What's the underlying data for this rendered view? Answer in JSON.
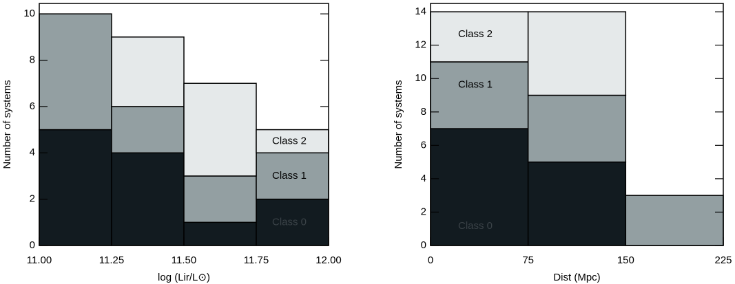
{
  "chart_data": [
    {
      "type": "histogram",
      "xlabel": "log (Lir/L⊙)",
      "ylabel": "Number of systems",
      "bins": [
        11.0,
        11.25,
        11.5,
        11.75,
        12.0
      ],
      "series": [
        {
          "name": "Class 0",
          "color": "#121b20",
          "values": [
            5,
            4,
            1,
            2
          ]
        },
        {
          "name": "Class 1",
          "color": "#939fa2",
          "values": [
            5,
            2,
            2,
            2
          ]
        },
        {
          "name": "Class 2",
          "color": "#e5e9ea",
          "values": [
            0,
            3,
            4,
            1
          ]
        }
      ],
      "xlim": [
        11.0,
        12.0
      ],
      "xticks": [
        {
          "value": 11.0,
          "label": "11.00"
        },
        {
          "value": 11.25,
          "label": "11.25"
        },
        {
          "value": 11.5,
          "label": "11.50"
        },
        {
          "value": 11.75,
          "label": "11.75"
        },
        {
          "value": 12.0,
          "label": "12.00"
        }
      ],
      "ylim": [
        0,
        10.45
      ],
      "yticks": [
        0,
        2,
        4,
        6,
        8,
        10
      ]
    },
    {
      "type": "histogram",
      "xlabel": "Dist (Mpc)",
      "ylabel": "Number of systems",
      "bins": [
        0,
        75,
        150,
        225
      ],
      "series": [
        {
          "name": "Class 0",
          "color": "#121b20",
          "values": [
            7,
            5,
            0
          ]
        },
        {
          "name": "Class 1",
          "color": "#939fa2",
          "values": [
            4,
            4,
            3
          ]
        },
        {
          "name": "Class 2",
          "color": "#e5e9ea",
          "values": [
            3,
            5,
            0
          ]
        }
      ],
      "xlim": [
        0,
        225
      ],
      "xticks": [
        0,
        75,
        150,
        225
      ],
      "ylim": [
        0,
        14.5
      ],
      "yticks": [
        0,
        2,
        4,
        6,
        8,
        10,
        12,
        14
      ]
    }
  ]
}
